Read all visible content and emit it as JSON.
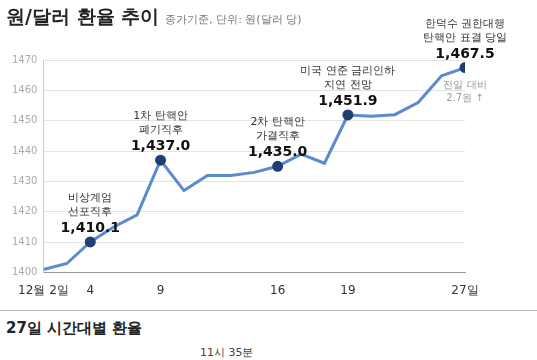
{
  "chart_data": {
    "type": "line",
    "title": "원/달러 환율 추이",
    "subtitle": "종가기준, 단위: 원(달러 당)",
    "categories": [
      "12월 2일",
      null,
      "4",
      null,
      null,
      "9",
      null,
      null,
      null,
      null,
      "16",
      null,
      null,
      "19",
      null,
      null,
      null,
      null,
      "27일"
    ],
    "values": [
      1401,
      1403,
      1410.1,
      1415,
      1419,
      1437.0,
      1427,
      1432,
      1432,
      1433,
      1435.0,
      1439,
      1436,
      1451.9,
      1451.5,
      1452,
      1456,
      1464.8,
      1467.5
    ],
    "value_labels": [
      null,
      null,
      "1,410.1",
      null,
      null,
      "1,437.0",
      null,
      null,
      null,
      null,
      "1,435.0",
      null,
      null,
      "1,451.9",
      null,
      null,
      null,
      null,
      "1,467.5"
    ],
    "data_labels": true,
    "annotations": [
      {
        "index": 2,
        "text": [
          "비상계엄",
          "선포직후"
        ]
      },
      {
        "index": 5,
        "text": [
          "1차 탄핵안",
          "폐기직후"
        ]
      },
      {
        "index": 10,
        "text": [
          "2차 탄핵안",
          "가결직후"
        ]
      },
      {
        "index": 13,
        "text": [
          "미국 연준 금리인하",
          "지연 전망"
        ]
      },
      {
        "index": 18,
        "text": [
          "한덕수 권한대행",
          "탄핵안 표결 당일"
        ],
        "note": [
          "전일 대비",
          "2.7원 ↑"
        ]
      }
    ],
    "color": "#5b8ad0",
    "ylim": [
      1400,
      1470
    ],
    "yticks": [
      1400,
      1410,
      1420,
      1430,
      1440,
      1450,
      1460,
      1470
    ],
    "grid": true
  },
  "bottom_panel": {
    "title": "27일 시간대별 환율",
    "annotation": "11시 35분"
  }
}
